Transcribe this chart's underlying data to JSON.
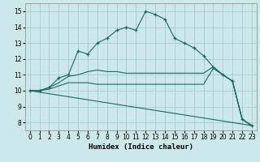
{
  "xlabel": "Humidex (Indice chaleur)",
  "background_color": "#cce8e8",
  "grid_color": "#aacccc",
  "line_color": "#1a6b5a",
  "xlim": [
    -0.5,
    23.5
  ],
  "ylim": [
    7.5,
    15.5
  ],
  "xticks": [
    0,
    1,
    2,
    3,
    4,
    5,
    6,
    7,
    8,
    9,
    10,
    11,
    12,
    13,
    14,
    15,
    16,
    17,
    18,
    19,
    20,
    21,
    22,
    23
  ],
  "yticks": [
    8,
    9,
    10,
    11,
    12,
    13,
    14,
    15
  ],
  "series": [
    {
      "x": [
        0,
        1,
        2,
        3,
        4,
        5,
        6,
        7,
        8,
        9,
        10,
        11,
        12,
        13,
        14,
        15,
        16,
        17,
        18,
        19,
        20,
        21,
        22,
        23
      ],
      "y": [
        10,
        10,
        10.2,
        10.8,
        11.0,
        12.5,
        12.3,
        13.0,
        13.3,
        13.8,
        14.0,
        13.8,
        15.0,
        14.8,
        14.5,
        13.3,
        13.0,
        12.7,
        12.2,
        11.5,
        11.0,
        10.6,
        8.2,
        7.8
      ],
      "marker": true
    },
    {
      "x": [
        0,
        1,
        2,
        3,
        4,
        5,
        6,
        7,
        8,
        9,
        10,
        11,
        12,
        13,
        14,
        15,
        16,
        17,
        18,
        19,
        20,
        21,
        22,
        23
      ],
      "y": [
        10,
        10,
        10.2,
        10.5,
        10.9,
        11.0,
        11.2,
        11.3,
        11.2,
        11.2,
        11.1,
        11.1,
        11.1,
        11.1,
        11.1,
        11.1,
        11.1,
        11.1,
        11.1,
        11.5,
        11.0,
        10.6,
        8.2,
        7.8
      ],
      "marker": false
    },
    {
      "x": [
        0,
        1,
        2,
        3,
        4,
        5,
        6,
        7,
        8,
        9,
        10,
        11,
        12,
        13,
        14,
        15,
        16,
        17,
        18,
        19,
        20,
        21,
        22,
        23
      ],
      "y": [
        10,
        10,
        10.1,
        10.3,
        10.5,
        10.5,
        10.5,
        10.4,
        10.4,
        10.4,
        10.4,
        10.4,
        10.4,
        10.4,
        10.4,
        10.4,
        10.4,
        10.4,
        10.4,
        11.4,
        11.0,
        10.6,
        8.2,
        7.8
      ],
      "marker": false
    },
    {
      "x": [
        0,
        23
      ],
      "y": [
        10,
        7.8
      ],
      "marker": false
    }
  ]
}
